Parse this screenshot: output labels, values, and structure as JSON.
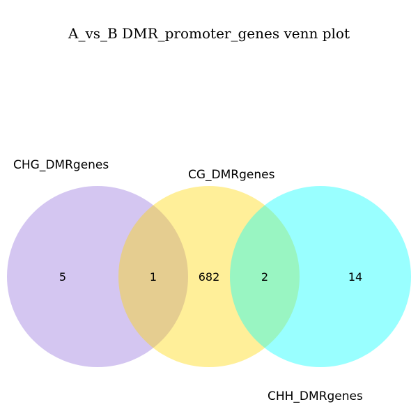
{
  "title": "A_vs_B DMR_promoter_genes venn plot",
  "sets": [
    {
      "name": "CHG_DMRgenes",
      "color": "#9370DB"
    },
    {
      "name": "CG_DMRgenes",
      "color": "#FFD700"
    },
    {
      "name": "CHH_DMRgenes",
      "color": "#00FFFF"
    }
  ],
  "regions": [
    {
      "sets": [
        "CHG_DMRgenes"
      ],
      "count": "5"
    },
    {
      "sets": [
        "CHG_DMRgenes",
        "CG_DMRgenes"
      ],
      "count": "1"
    },
    {
      "sets": [
        "CG_DMRgenes"
      ],
      "count": "682"
    },
    {
      "sets": [
        "CG_DMRgenes",
        "CHH_DMRgenes"
      ],
      "count": "2"
    },
    {
      "sets": [
        "CHH_DMRgenes"
      ],
      "count": "14"
    }
  ]
}
